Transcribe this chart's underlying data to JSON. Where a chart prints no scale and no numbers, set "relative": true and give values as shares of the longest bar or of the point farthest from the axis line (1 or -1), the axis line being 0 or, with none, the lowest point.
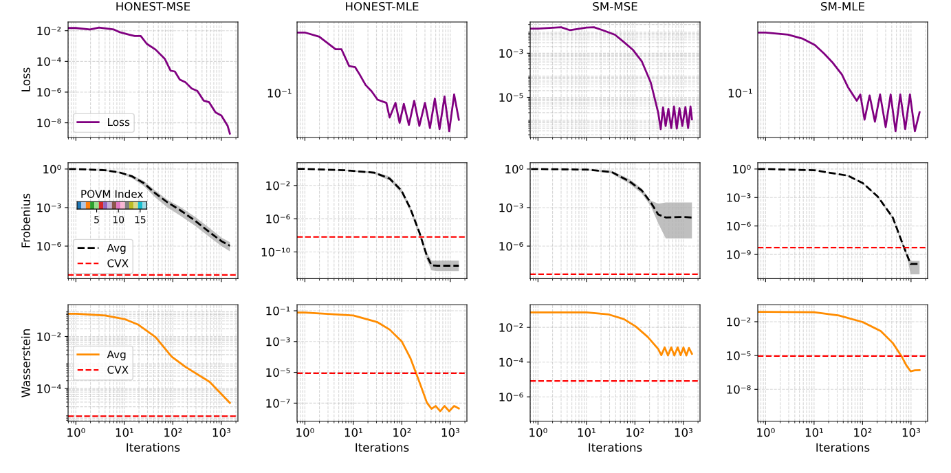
{
  "chart_data": [
    {
      "type": "line",
      "title": "HONEST-MSE",
      "ylabel": "Loss",
      "log": "xy",
      "grid": true,
      "legend": "bottom left",
      "tick_labels": "y",
      "xlim": [
        0.69,
        2200
      ],
      "xticks": [
        {
          "value": 1,
          "label": null
        },
        {
          "value": 10,
          "label": null
        },
        {
          "value": 100,
          "label": null
        },
        {
          "value": 1000,
          "label": null
        }
      ],
      "ylim": [
        1.1e-09,
        0.037
      ],
      "yticks": [
        {
          "value": 1e-08,
          "label": "10⁻⁸"
        },
        {
          "value": 1e-06,
          "label": "10⁻⁶"
        },
        {
          "value": 0.0001,
          "label": "10⁻⁴"
        },
        {
          "value": 0.01,
          "label": "10⁻²"
        }
      ],
      "series": [
        {
          "name": "Loss",
          "color": "#800080",
          "x": [
            0.72,
            1,
            1.95,
            3,
            6.1,
            8.1,
            12.4,
            16.4,
            21.8,
            29,
            44,
            68,
            90,
            110,
            139,
            180,
            245,
            320,
            432,
            560,
            760,
            1000,
            1350,
            1500
          ],
          "values": [
            0.015,
            0.015,
            0.012,
            0.016,
            0.012,
            0.0079,
            0.0056,
            0.0045,
            0.0045,
            0.0014,
            0.00059,
            0.00015,
            2.5e-05,
            2.2e-05,
            6.6e-06,
            4.5e-06,
            1.7e-06,
            1.2e-06,
            2.8e-07,
            2.2e-07,
            4.7e-08,
            3e-08,
            6.3e-09,
            2e-09
          ]
        }
      ]
    },
    {
      "type": "line",
      "title": "HONEST-MLE",
      "log": "x",
      "relative": true,
      "annotations": [
        "10⁻¹"
      ],
      "grid": "x",
      "tick_labels": false,
      "xlim": [
        0.69,
        2200
      ],
      "xticks": [
        {
          "value": 1,
          "label": null
        },
        {
          "value": 10,
          "label": null
        },
        {
          "value": 100,
          "label": null
        },
        {
          "value": 1000,
          "label": null
        }
      ],
      "series": [
        {
          "color": "#800080",
          "x": [
            0.71,
            1,
            1.98,
            4.3,
            5.7,
            8.2,
            10.9,
            13.5,
            17.9,
            23.8,
            31.6,
            48,
            56,
            74,
            90,
            110,
            140,
            180,
            230,
            300,
            380,
            480,
            600,
            760,
            950,
            1200,
            1500
          ],
          "values": [
            1,
            1,
            0.96,
            0.84,
            0.84,
            0.68,
            0.67,
            0.6,
            0.5,
            0.44,
            0.36,
            0.33,
            0.19,
            0.33,
            0.14,
            0.32,
            0.12,
            0.35,
            0.11,
            0.33,
            0.09,
            0.37,
            0.08,
            0.39,
            0.06,
            0.41,
            0.17
          ]
        }
      ]
    },
    {
      "type": "line",
      "title": "SM-MSE",
      "log": "xy",
      "grid": true,
      "tick_labels": "y",
      "xlim": [
        0.69,
        2200
      ],
      "xticks": [
        {
          "value": 1,
          "label": null
        },
        {
          "value": 10,
          "label": null
        },
        {
          "value": 100,
          "label": null
        },
        {
          "value": 1000,
          "label": null
        }
      ],
      "ylim": [
        1.5e-07,
        0.026
      ],
      "yticks": [
        {
          "value": 1e-05,
          "label": "10⁻⁵"
        },
        {
          "value": 0.001,
          "label": "10⁻³"
        }
      ],
      "series": [
        {
          "color": "#800080",
          "x": [
            0.72,
            1,
            3,
            4.6,
            10,
            14.3,
            21.8,
            38.6,
            59,
            90,
            139,
            212,
            302,
            340,
            380,
            430,
            490,
            560,
            640,
            730,
            830,
            950,
            1100,
            1250,
            1400,
            1500
          ],
          "values": [
            0.013,
            0.013,
            0.015,
            0.011,
            0.0145,
            0.015,
            0.011,
            0.0069,
            0.0032,
            0.00145,
            0.00042,
            4.7e-05,
            2e-06,
            3.6e-07,
            3.5e-06,
            5e-07,
            3e-06,
            4e-07,
            3.8e-06,
            3.8e-07,
            3.2e-06,
            5e-07,
            3.6e-06,
            4e-07,
            3.8e-06,
            1e-06
          ]
        }
      ]
    },
    {
      "type": "line",
      "title": "SM-MLE",
      "log": "x",
      "relative": true,
      "annotations": [
        "10⁻¹"
      ],
      "grid": "x",
      "tick_labels": false,
      "xlim": [
        0.69,
        2200
      ],
      "xticks": [
        {
          "value": 1,
          "label": null
        },
        {
          "value": 10,
          "label": null
        },
        {
          "value": 100,
          "label": null
        },
        {
          "value": 1000,
          "label": null
        }
      ],
      "series": [
        {
          "color": "#800080",
          "x": [
            0.7,
            1,
            2.9,
            5.9,
            10.4,
            16,
            24.5,
            37.5,
            50,
            76,
            90,
            110,
            140,
            180,
            230,
            300,
            380,
            480,
            600,
            760,
            950,
            1200,
            1500
          ],
          "values": [
            1,
            1,
            0.98,
            0.94,
            0.88,
            0.8,
            0.71,
            0.6,
            0.48,
            0.35,
            0.41,
            0.17,
            0.4,
            0.15,
            0.41,
            0.1,
            0.41,
            0.06,
            0.41,
            0.08,
            0.41,
            0.06,
            0.24
          ]
        }
      ]
    },
    {
      "type": "line",
      "ylabel": "Frobenius",
      "log": "xy",
      "grid": true,
      "legend": "bottom left",
      "tick_labels": "y",
      "xlim": [
        0.69,
        2200
      ],
      "xticks": [
        {
          "value": 1,
          "label": null
        },
        {
          "value": 10,
          "label": null
        },
        {
          "value": 100,
          "label": null
        },
        {
          "value": 1000,
          "label": null
        }
      ],
      "ylim": [
        2.9e-09,
        3.1
      ],
      "yticks": [
        {
          "value": 1e-06,
          "label": "10⁻⁶"
        },
        {
          "value": 0.001,
          "label": "10⁻³"
        },
        {
          "value": 1,
          "label": "10⁰"
        }
      ],
      "ref_lines": [
        {
          "axis": "y",
          "value": 5.8e-09,
          "label": "CVX",
          "color": "#ff0000",
          "line_style": "dashed"
        }
      ],
      "series": [
        {
          "name": "Avg",
          "color": "#000000",
          "line_style": "dashed",
          "x": [
            0.72,
            1,
            4,
            8.1,
            14.2,
            25,
            44,
            78,
            139,
            282,
            575,
            1010,
            1500
          ],
          "values": [
            1,
            1,
            0.81,
            0.53,
            0.28,
            0.081,
            0.0125,
            0.0025,
            0.00066,
            0.0001,
            1.2e-05,
            2.4e-06,
            1.07e-06
          ],
          "lower": [
            1,
            1,
            0.7,
            0.45,
            0.2,
            0.05,
            0.006,
            0.001,
            0.00025,
            4e-05,
            5e-06,
            1e-06,
            4e-07
          ],
          "upper": [
            1,
            1,
            0.9,
            0.6,
            0.35,
            0.12,
            0.02,
            0.004,
            0.0012,
            0.0002,
            2.5e-05,
            4.5e-06,
            2e-06
          ]
        }
      ]
    },
    {
      "type": "line",
      "log": "xy",
      "grid": true,
      "tick_labels": "y",
      "xlim": [
        0.69,
        2200
      ],
      "xticks": [
        {
          "value": 1,
          "label": null
        },
        {
          "value": 10,
          "label": null
        },
        {
          "value": 100,
          "label": null
        },
        {
          "value": 1000,
          "label": null
        }
      ],
      "ylim": [
        6e-14,
        5.5
      ],
      "yticks": [
        {
          "value": 1e-10,
          "label": "10⁻¹⁰"
        },
        {
          "value": 1e-06,
          "label": "10⁻⁶"
        },
        {
          "value": 0.01,
          "label": "10⁻²"
        }
      ],
      "ref_lines": [
        {
          "axis": "y",
          "value": 6.3e-09,
          "color": "#ff0000",
          "line_style": "dashed"
        }
      ],
      "series": [
        {
          "color": "#000000",
          "line_style": "dashed",
          "x": [
            0.71,
            1,
            6.6,
            27,
            56,
            98,
            150,
            230,
            330,
            410,
            540,
            800,
            1100,
            1500
          ],
          "values": [
            1,
            1,
            0.68,
            0.35,
            0.068,
            0.0025,
            1.7e-05,
            2.3e-08,
            3.2e-11,
            2.5e-12,
            2.2e-12,
            2.2e-12,
            2.2e-12,
            2.2e-12
          ],
          "lower": [
            1,
            1,
            0.6,
            0.25,
            0.04,
            0.0012,
            8e-06,
            1e-08,
            1e-11,
            6e-13,
            5e-13,
            5e-13,
            5e-13,
            5e-13
          ],
          "upper": [
            1,
            1,
            0.75,
            0.45,
            0.12,
            0.004,
            3e-05,
            4e-08,
            8e-11,
            9e-12,
            9e-12,
            9e-12,
            9e-12,
            9e-12
          ]
        }
      ]
    },
    {
      "type": "line",
      "log": "xy",
      "grid": true,
      "tick_labels": "y",
      "xlim": [
        0.69,
        2200
      ],
      "xticks": [
        {
          "value": 1,
          "label": null
        },
        {
          "value": 10,
          "label": null
        },
        {
          "value": 100,
          "label": null
        },
        {
          "value": 1000,
          "label": null
        }
      ],
      "ylim": [
        2.9e-09,
        3.1
      ],
      "yticks": [
        {
          "value": 1e-06,
          "label": "10⁻⁶"
        },
        {
          "value": 0.001,
          "label": "10⁻³"
        },
        {
          "value": 1,
          "label": "10⁰"
        }
      ],
      "ref_lines": [
        {
          "axis": "y",
          "value": 6.5e-09,
          "color": "#ff0000",
          "line_style": "dashed"
        }
      ],
      "series": [
        {
          "color": "#000000",
          "line_style": "dashed",
          "x": [
            0.72,
            1,
            10,
            33,
            78,
            139,
            212,
            302,
            432,
            1000,
            1500
          ],
          "values": [
            1,
            1,
            0.91,
            0.59,
            0.107,
            0.021,
            0.0025,
            0.00029,
            0.00017,
            0.000185,
            0.00017
          ],
          "lower": [
            1,
            1,
            0.85,
            0.45,
            0.07,
            0.012,
            0.0013,
            6e-05,
            4e-06,
            4e-06,
            4e-06
          ],
          "upper": [
            1,
            1,
            0.95,
            0.75,
            0.16,
            0.03,
            0.0035,
            0.002,
            0.0025,
            0.0025,
            0.0025
          ]
        }
      ]
    },
    {
      "type": "line",
      "log": "xy",
      "grid": true,
      "tick_labels": "y",
      "xlim": [
        0.69,
        2200
      ],
      "xticks": [
        {
          "value": 1,
          "label": null
        },
        {
          "value": 10,
          "label": null
        },
        {
          "value": 100,
          "label": null
        },
        {
          "value": 1000,
          "label": null
        }
      ],
      "ylim": [
        2.8e-12,
        4.6
      ],
      "yticks": [
        {
          "value": 1e-09,
          "label": "10⁻⁹"
        },
        {
          "value": 1e-06,
          "label": "10⁻⁶"
        },
        {
          "value": 0.001,
          "label": "10⁻³"
        },
        {
          "value": 1,
          "label": "10⁰"
        }
      ],
      "ref_lines": [
        {
          "axis": "y",
          "value": 5.3e-09,
          "color": "#ff0000",
          "line_style": "dashed"
        }
      ],
      "series": [
        {
          "color": "#000000",
          "line_style": "dashed",
          "x": [
            0.7,
            1,
            10,
            49.8,
            101,
            205,
            420,
            640,
            850,
            980,
            1500
          ],
          "values": [
            1,
            1,
            0.75,
            0.2,
            0.033,
            0.0013,
            7.9e-06,
            2.5e-08,
            6.3e-10,
            1e-10,
            1e-10
          ],
          "lower": [
            1,
            1,
            0.72,
            0.18,
            0.028,
            0.001,
            5e-06,
            1.5e-08,
            3e-10,
            8e-12,
            8e-12
          ],
          "upper": [
            1,
            1,
            0.78,
            0.22,
            0.038,
            0.0016,
            1e-05,
            3.5e-08,
            9e-10,
            2.1e-10,
            2.1e-10
          ]
        }
      ]
    },
    {
      "type": "line",
      "xlabel": "Iterations",
      "ylabel": "Wasserstein",
      "log": "xy",
      "grid": true,
      "legend": "left",
      "xlim": [
        0.69,
        2200
      ],
      "xticks": [
        {
          "value": 1,
          "label": "10⁰"
        },
        {
          "value": 10,
          "label": "10¹"
        },
        {
          "value": 100,
          "label": "10²"
        },
        {
          "value": 1000,
          "label": "10³"
        }
      ],
      "ylim": [
        5.5e-06,
        0.166
      ],
      "yticks": [
        {
          "value": 0.0001,
          "label": "10⁻⁴"
        },
        {
          "value": 0.01,
          "label": "10⁻²"
        }
      ],
      "ref_lines": [
        {
          "axis": "y",
          "value": 8.7e-06,
          "label": "CVX",
          "color": "#ff0000",
          "line_style": "dashed"
        }
      ],
      "series": [
        {
          "name": "Avg",
          "color": "#ff8c00",
          "x": [
            0.72,
            1,
            4,
            10,
            19,
            44,
            94,
            184,
            575,
            1500
          ],
          "values": [
            0.0746,
            0.0746,
            0.064,
            0.047,
            0.029,
            0.0095,
            0.0017,
            0.00067,
            0.00018,
            2.8e-05
          ]
        }
      ]
    },
    {
      "type": "line",
      "xlabel": "Iterations",
      "log": "xy",
      "grid": true,
      "xlim": [
        0.69,
        2200
      ],
      "xticks": [
        {
          "value": 1,
          "label": "10⁰"
        },
        {
          "value": 10,
          "label": "10¹"
        },
        {
          "value": 100,
          "label": "10²"
        },
        {
          "value": 1000,
          "label": "10³"
        }
      ],
      "ylim": [
        6.6e-09,
        0.245
      ],
      "yticks": [
        {
          "value": 1e-07,
          "label": "10⁻⁷"
        },
        {
          "value": 1e-05,
          "label": "10⁻⁵"
        },
        {
          "value": 0.001,
          "label": "10⁻³"
        },
        {
          "value": 0.1,
          "label": "10⁻¹"
        }
      ],
      "ref_lines": [
        {
          "axis": "y",
          "value": 8.7e-06,
          "color": "#ff0000",
          "line_style": "dashed"
        }
      ],
      "series": [
        {
          "color": "#ff8c00",
          "x": [
            0.71,
            1,
            10,
            31.6,
            56,
            100,
            150,
            230,
            330,
            410,
            500,
            620,
            760,
            950,
            1200,
            1500
          ],
          "values": [
            0.076,
            0.076,
            0.049,
            0.018,
            0.006,
            0.001,
            8.5e-05,
            2.4e-06,
            1.05e-07,
            4.3e-08,
            6.5e-08,
            3e-08,
            6.5e-08,
            3e-08,
            6.5e-08,
            4.5e-08
          ]
        }
      ]
    },
    {
      "type": "line",
      "xlabel": "Iterations",
      "log": "xy",
      "grid": true,
      "xlim": [
        0.69,
        2200
      ],
      "xticks": [
        {
          "value": 1,
          "label": "10⁰"
        },
        {
          "value": 10,
          "label": "10¹"
        },
        {
          "value": 100,
          "label": "10²"
        },
        {
          "value": 1000,
          "label": "10³"
        }
      ],
      "ylim": [
        3.9e-08,
        0.2
      ],
      "yticks": [
        {
          "value": 1e-06,
          "label": "10⁻⁶"
        },
        {
          "value": 0.0001,
          "label": "10⁻⁴"
        },
        {
          "value": 0.01,
          "label": "10⁻²"
        }
      ],
      "ref_lines": [
        {
          "axis": "y",
          "value": 8.2e-06,
          "color": "#ff0000",
          "line_style": "dashed"
        }
      ],
      "series": [
        {
          "color": "#ff8c00",
          "x": [
            0.72,
            1,
            10,
            29,
            59,
            104,
            184,
            302,
            350,
            410,
            480,
            560,
            650,
            760,
            880,
            1000,
            1150,
            1300,
            1500
          ],
          "values": [
            0.073,
            0.073,
            0.073,
            0.055,
            0.03,
            0.0112,
            0.0028,
            0.00057,
            0.00025,
            0.0007,
            0.00024,
            0.0007,
            0.00024,
            0.0007,
            0.00025,
            0.0007,
            0.00024,
            0.00065,
            0.0003
          ]
        }
      ]
    },
    {
      "type": "line",
      "xlabel": "Iterations",
      "log": "xy",
      "grid": true,
      "xlim": [
        0.69,
        2200
      ],
      "xticks": [
        {
          "value": 1,
          "label": "10⁰"
        },
        {
          "value": 10,
          "label": "10¹"
        },
        {
          "value": 100,
          "label": "10²"
        },
        {
          "value": 1000,
          "label": "10³"
        }
      ],
      "ylim": [
        1.45e-11,
        0.32
      ],
      "yticks": [
        {
          "value": 1e-08,
          "label": "10⁻⁸"
        },
        {
          "value": 1e-05,
          "label": "10⁻⁵"
        },
        {
          "value": 0.01,
          "label": "10⁻²"
        }
      ],
      "ref_lines": [
        {
          "axis": "y",
          "value": 8.9e-06,
          "color": "#ff0000",
          "line_style": "dashed"
        }
      ],
      "series": [
        {
          "color": "#ff8c00",
          "x": [
            0.7,
            1,
            10,
            32.5,
            101,
            237,
            420,
            640,
            800,
            980,
            1200,
            1500
          ],
          "values": [
            0.074,
            0.074,
            0.071,
            0.036,
            0.0093,
            0.0015,
            0.00013,
            8.3e-06,
            1.35e-06,
            4e-07,
            4.8e-07,
            5e-07
          ]
        }
      ]
    },
    {
      "type": "bar",
      "title": "POVM Index",
      "relative": true,
      "grid": "x",
      "tick_labels": "x",
      "categories": [
        null,
        null,
        null,
        null,
        "5",
        null,
        null,
        null,
        null,
        "10",
        null,
        null,
        null,
        null,
        "15",
        null
      ],
      "values": [
        1,
        1,
        1,
        1,
        1,
        1,
        1,
        1,
        1,
        1,
        1,
        1,
        1,
        1,
        1,
        1
      ],
      "colors": [
        "#1f77b4",
        "#aec7e8",
        "#ff7f0e",
        "#2ca02c",
        "#98df8a",
        "#d62728",
        "#9467bd",
        "#c5b0d5",
        "#8c564b",
        "#e377c2",
        "#f7b6d2",
        "#7f7f7f",
        "#bcbd22",
        "#dbdb8d",
        "#17becf",
        "#9edae5"
      ]
    }
  ]
}
